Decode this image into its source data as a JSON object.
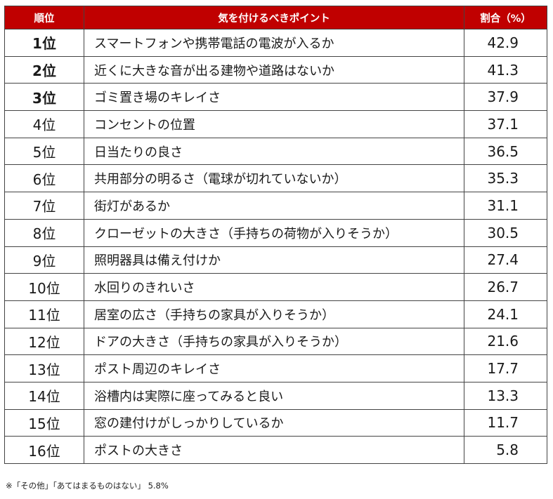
{
  "headers": {
    "rank": "順位",
    "point": "気を付けるべきポイント",
    "ratio": "割合（%）"
  },
  "colors": {
    "header_bg": "#c00000",
    "header_text": "#ffffff",
    "border": "#444444"
  },
  "rows": [
    {
      "rank": "1位",
      "point": "スマートフォンや携帯電話の電波が入るか",
      "value": "42.9"
    },
    {
      "rank": "2位",
      "point": "近くに大きな音が出る建物や道路はないか",
      "value": "41.3"
    },
    {
      "rank": "3位",
      "point": "ゴミ置き場のキレイさ",
      "value": "37.9"
    },
    {
      "rank": "4位",
      "point": "コンセントの位置",
      "value": "37.1"
    },
    {
      "rank": "5位",
      "point": "日当たりの良さ",
      "value": "36.5"
    },
    {
      "rank": "6位",
      "point": "共用部分の明るさ（電球が切れていないか）",
      "value": "35.3"
    },
    {
      "rank": "7位",
      "point": "街灯があるか",
      "value": "31.1"
    },
    {
      "rank": "8位",
      "point": "クローゼットの大きさ（手持ちの荷物が入りそうか）",
      "value": "30.5"
    },
    {
      "rank": "9位",
      "point": "照明器具は備え付けか",
      "value": "27.4"
    },
    {
      "rank": "10位",
      "point": "水回りのきれいさ",
      "value": "26.7"
    },
    {
      "rank": "11位",
      "point": "居室の広さ（手持ちの家具が入りそうか）",
      "value": "24.1"
    },
    {
      "rank": "12位",
      "point": "ドアの大きさ（手持ちの家具が入りそうか）",
      "value": "21.6"
    },
    {
      "rank": "13位",
      "point": "ポスト周辺のキレイさ",
      "value": "17.7"
    },
    {
      "rank": "14位",
      "point": "浴槽内は実際に座ってみると良い",
      "value": "13.3"
    },
    {
      "rank": "15位",
      "point": "窓の建付けがしっかりしているか",
      "value": "11.7"
    },
    {
      "rank": "16位",
      "point": "ポストの大きさ",
      "value": "5.8"
    }
  ],
  "footnote": "※「その他」「あてはまるものはない」 5.8%",
  "chart_data": {
    "type": "table",
    "columns": [
      "順位",
      "気を付けるべきポイント",
      "割合（%）"
    ],
    "categories": [
      "スマートフォンや携帯電話の電波が入るか",
      "近くに大きな音が出る建物や道路はないか",
      "ゴミ置き場のキレイさ",
      "コンセントの位置",
      "日当たりの良さ",
      "共用部分の明るさ（電球が切れていないか）",
      "街灯があるか",
      "クローゼットの大きさ（手持ちの荷物が入りそうか）",
      "照明器具は備え付けか",
      "水回りのきれいさ",
      "居室の広さ（手持ちの家具が入りそうか）",
      "ドアの大きさ（手持ちの家具が入りそうか）",
      "ポスト周辺のキレイさ",
      "浴槽内は実際に座ってみると良い",
      "窓の建付けがしっかりしているか",
      "ポストの大きさ"
    ],
    "values": [
      42.9,
      41.3,
      37.9,
      37.1,
      36.5,
      35.3,
      31.1,
      30.5,
      27.4,
      26.7,
      24.1,
      21.6,
      17.7,
      13.3,
      11.7,
      5.8
    ]
  }
}
